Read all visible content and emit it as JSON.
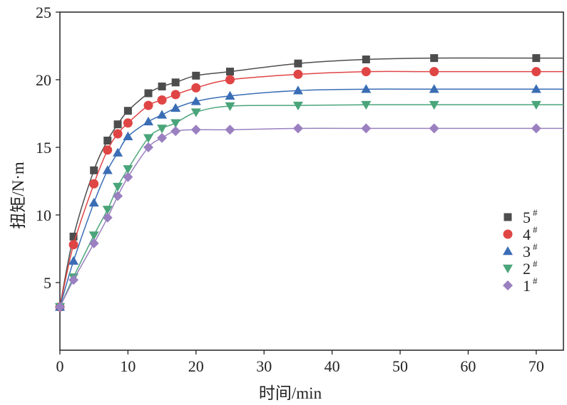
{
  "chart_data": {
    "type": "line",
    "title": "",
    "xlabel": "时间/min",
    "ylabel": "扭矩/N·m",
    "xlim": [
      0,
      74
    ],
    "ylim": [
      0,
      25
    ],
    "xticks": [
      0,
      10,
      20,
      30,
      40,
      50,
      60,
      70
    ],
    "yticks": [
      5,
      10,
      15,
      20,
      25
    ],
    "grid": false,
    "legend_position": "right",
    "x": [
      0,
      2,
      5,
      7,
      8.5,
      10,
      13,
      15,
      17,
      20,
      25,
      35,
      45,
      55,
      70
    ],
    "series": [
      {
        "name": "5",
        "sup": "#",
        "color": "#4d4d4d",
        "marker": "square",
        "values": [
          3.2,
          8.4,
          13.3,
          15.5,
          16.7,
          17.7,
          19.0,
          19.5,
          19.8,
          20.3,
          20.6,
          21.2,
          21.5,
          21.6,
          21.6
        ]
      },
      {
        "name": "4",
        "sup": "#",
        "color": "#e04545",
        "marker": "circle",
        "values": [
          3.2,
          7.8,
          12.3,
          14.8,
          16.0,
          16.8,
          18.1,
          18.5,
          18.9,
          19.4,
          20.0,
          20.4,
          20.6,
          20.6,
          20.6
        ]
      },
      {
        "name": "3",
        "sup": "#",
        "color": "#3a6db5",
        "marker": "triangle-up",
        "values": [
          3.2,
          6.6,
          10.9,
          13.3,
          14.6,
          15.8,
          16.9,
          17.4,
          17.9,
          18.4,
          18.8,
          19.2,
          19.3,
          19.3,
          19.3
        ]
      },
      {
        "name": "2",
        "sup": "#",
        "color": "#4aa57a",
        "marker": "triangle-down",
        "values": [
          3.2,
          5.4,
          8.5,
          10.4,
          12.1,
          13.4,
          15.7,
          16.4,
          16.8,
          17.6,
          18.05,
          18.1,
          18.15,
          18.15,
          18.15
        ]
      },
      {
        "name": "1",
        "sup": "#",
        "color": "#9a80c0",
        "marker": "diamond",
        "values": [
          3.2,
          5.2,
          7.9,
          9.8,
          11.4,
          12.8,
          15.0,
          15.7,
          16.2,
          16.3,
          16.3,
          16.4,
          16.4,
          16.4,
          16.4
        ]
      }
    ]
  }
}
